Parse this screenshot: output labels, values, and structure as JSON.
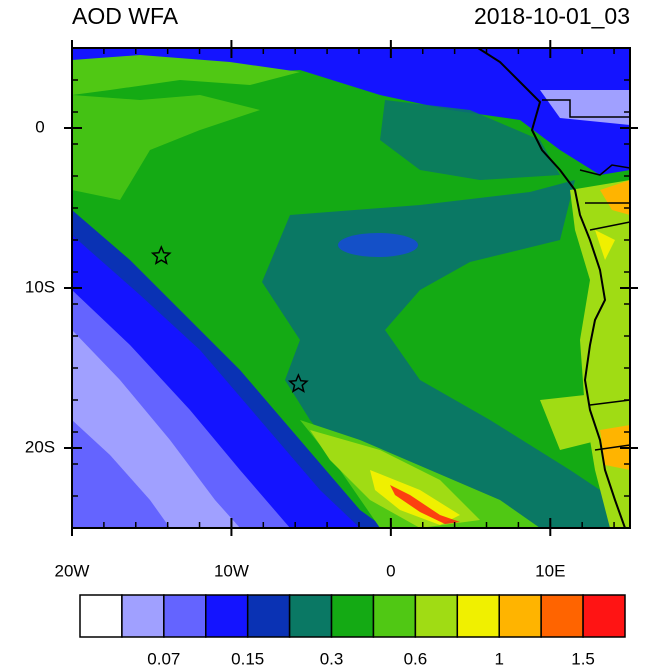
{
  "title": "AOD WFA",
  "time": "2018-10-01_03",
  "map": {
    "lonlim": [
      -20,
      15
    ],
    "latlim": [
      -25,
      5
    ],
    "xticks": [
      {
        "value": -20,
        "label": "20W"
      },
      {
        "value": -10,
        "label": "10W"
      },
      0,
      {
        "value": 10,
        "label": "10E"
      }
    ],
    "yticks": [
      0,
      {
        "value": -10,
        "label": "10S"
      },
      {
        "value": -20,
        "label": "20S"
      }
    ],
    "markers": [
      {
        "lon": -14.4,
        "lat": -8
      },
      {
        "lon": -5.8,
        "lat": -16
      }
    ]
  },
  "colorbar": {
    "colors": [
      "#ffffff",
      "#a0a0ff",
      "#6464ff",
      "#1414ff",
      "#0a32b4",
      "#0a7864",
      "#14aa14",
      "#50c814",
      "#a0dc14",
      "#f0f000",
      "#ffb400",
      "#ff6400",
      "#ff1414"
    ],
    "levels": [
      null,
      0.07,
      null,
      0.15,
      null,
      0.3,
      null,
      0.6,
      null,
      1,
      null,
      1.5
    ]
  }
}
